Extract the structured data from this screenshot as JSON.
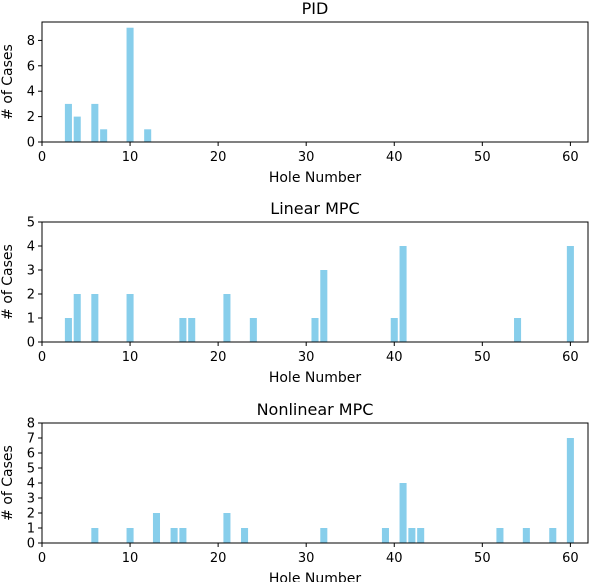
{
  "chart_data": [
    {
      "type": "bar",
      "title": "PID",
      "xlabel": "Hole Number",
      "ylabel": "# of Cases",
      "xlim": [
        0,
        62
      ],
      "ylim": [
        0,
        9.45
      ],
      "xticks": [
        0,
        10,
        20,
        30,
        40,
        50,
        60
      ],
      "yticks": [
        0,
        2,
        4,
        6,
        8
      ],
      "color": "#87ceeb",
      "x": [
        3,
        4,
        6,
        7,
        10,
        12
      ],
      "values": [
        3,
        2,
        3,
        1,
        9,
        1
      ]
    },
    {
      "type": "bar",
      "title": "Linear MPC",
      "xlabel": "Hole Number",
      "ylabel": "# of Cases",
      "xlim": [
        0,
        62
      ],
      "ylim": [
        0,
        5
      ],
      "xticks": [
        0,
        10,
        20,
        30,
        40,
        50,
        60
      ],
      "yticks": [
        0,
        1,
        2,
        3,
        4,
        5
      ],
      "color": "#87ceeb",
      "x": [
        3,
        4,
        6,
        10,
        16,
        17,
        21,
        24,
        31,
        32,
        40,
        41,
        54,
        60
      ],
      "values": [
        1,
        2,
        2,
        2,
        1,
        1,
        2,
        1,
        1,
        3,
        1,
        4,
        1,
        4
      ]
    },
    {
      "type": "bar",
      "title": "Nonlinear MPC",
      "xlabel": "Hole Number",
      "ylabel": "# of Cases",
      "xlim": [
        0,
        62
      ],
      "ylim": [
        0,
        8
      ],
      "xticks": [
        0,
        10,
        20,
        30,
        40,
        50,
        60
      ],
      "yticks": [
        0,
        1,
        2,
        3,
        4,
        5,
        6,
        7,
        8
      ],
      "color": "#87ceeb",
      "x": [
        6,
        10,
        13,
        15,
        16,
        21,
        23,
        32,
        39,
        41,
        42,
        43,
        52,
        55,
        58,
        60
      ],
      "values": [
        1,
        1,
        2,
        1,
        1,
        2,
        1,
        1,
        1,
        4,
        1,
        1,
        1,
        1,
        1,
        7
      ]
    }
  ]
}
